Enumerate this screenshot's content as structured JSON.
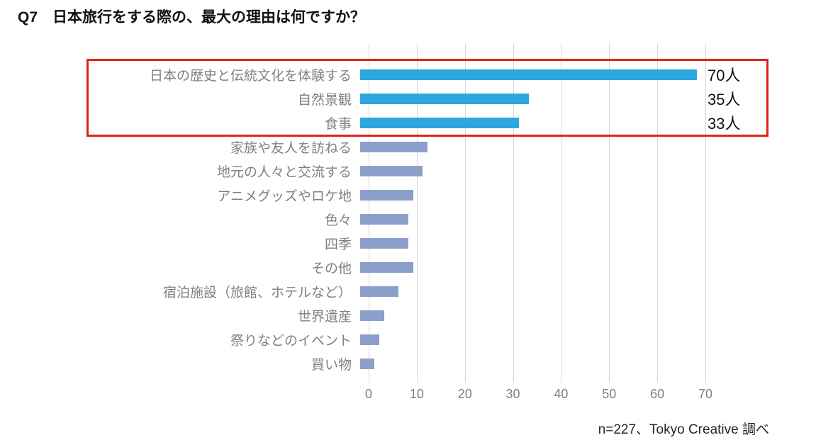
{
  "title": "Q7　日本旅行をする際の、最大の理由は何ですか？",
  "footer": "n=227、Tokyo Creative 調べ",
  "chart_data": {
    "type": "bar",
    "orientation": "horizontal",
    "title": "Q7　日本旅行をする際の、最大の理由は何ですか？",
    "categories": [
      "日本の歴史と伝統文化を体験する",
      "自然景観",
      "食事",
      "家族や友人を訪ねる",
      "地元の人々と交流する",
      "アニメグッズやロケ地",
      "色々",
      "四季",
      "その他",
      "宿泊施設（旅館、ホテルなど）",
      "世界遺産",
      "祭りなどのイベント",
      "買い物"
    ],
    "values": [
      70,
      35,
      33,
      14,
      13,
      11,
      10,
      10,
      11,
      8,
      5,
      4,
      3
    ],
    "value_labels": [
      "70人",
      "35人",
      "33人"
    ],
    "highlighted_count": 3,
    "xticks": [
      0,
      10,
      20,
      30,
      40,
      50,
      60,
      70
    ],
    "xlim": [
      0,
      70
    ],
    "grid": true,
    "legend": false,
    "annotation": "上位3項目が赤枠で強調",
    "source_note": "n=227、Tokyo Creative 調べ",
    "colors": {
      "highlight_bar": "#2ba7de",
      "default_bar": "#8c9fcb",
      "highlight_box": "#e2231a",
      "gridline": "#d6d6d6",
      "label_text": "#808080",
      "tick_text": "#808080",
      "value_text": "#111111"
    }
  }
}
